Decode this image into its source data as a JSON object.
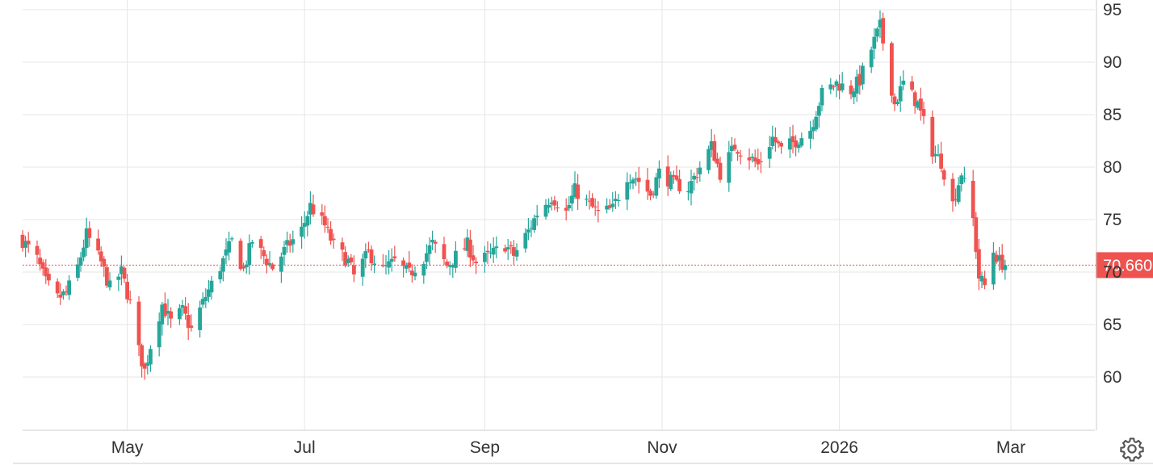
{
  "chart_data": {
    "type": "candlestick",
    "title": "",
    "xlabel": "",
    "ylabel": "",
    "ylim": [
      55,
      95
    ],
    "y_ticks": [
      60,
      65,
      70,
      75,
      80,
      85,
      90,
      95
    ],
    "x_tick_labels": [
      "May",
      "Jul",
      "Sep",
      "Nov",
      "2026",
      "Mar"
    ],
    "x_range": [
      "2025-03-26",
      "2026-03-02"
    ],
    "grid": true,
    "last_price": 70.66,
    "last_price_label": "70.660",
    "colors": {
      "up": "#26a69a",
      "down": "#ef5350",
      "grid": "#e6e6e6",
      "price_line": "#ef5350",
      "axis": "#cccccc"
    },
    "control_icons": [
      "settings-icon"
    ],
    "anchor_closes": [
      [
        "2025-03-26",
        73.0
      ],
      [
        "2025-03-31",
        71.2
      ],
      [
        "2025-04-03",
        69.0
      ],
      [
        "2025-04-07",
        67.5
      ],
      [
        "2025-04-10",
        68.0
      ],
      [
        "2025-04-14",
        70.5
      ],
      [
        "2025-04-17",
        73.6
      ],
      [
        "2025-04-22",
        70.9
      ],
      [
        "2025-04-25",
        68.5
      ],
      [
        "2025-04-29",
        70.0
      ],
      [
        "2025-05-02",
        67.0
      ],
      [
        "2025-05-05",
        62.5
      ],
      [
        "2025-05-07",
        60.6
      ],
      [
        "2025-05-09",
        63.0
      ],
      [
        "2025-05-13",
        66.9
      ],
      [
        "2025-05-16",
        65.2
      ],
      [
        "2025-05-20",
        66.3
      ],
      [
        "2025-05-23",
        64.5
      ],
      [
        "2025-05-28",
        67.7
      ],
      [
        "2025-06-02",
        70.5
      ],
      [
        "2025-06-06",
        72.9
      ],
      [
        "2025-06-10",
        70.2
      ],
      [
        "2025-06-13",
        73.0
      ],
      [
        "2025-06-17",
        71.5
      ],
      [
        "2025-06-20",
        70.4
      ],
      [
        "2025-06-25",
        72.4
      ],
      [
        "2025-06-30",
        74.0
      ],
      [
        "2025-07-03",
        76.3
      ],
      [
        "2025-07-08",
        74.4
      ],
      [
        "2025-07-11",
        72.5
      ],
      [
        "2025-07-16",
        71.0
      ],
      [
        "2025-07-18",
        69.6
      ],
      [
        "2025-07-23",
        71.8
      ],
      [
        "2025-07-28",
        70.2
      ],
      [
        "2025-08-01",
        71.0
      ],
      [
        "2025-08-06",
        69.8
      ],
      [
        "2025-08-11",
        71.4
      ],
      [
        "2025-08-14",
        72.7
      ],
      [
        "2025-08-19",
        70.6
      ],
      [
        "2025-08-22",
        71.5
      ],
      [
        "2025-08-26",
        72.6
      ],
      [
        "2025-08-29",
        70.9
      ],
      [
        "2025-09-03",
        71.6
      ],
      [
        "2025-09-08",
        72.6
      ],
      [
        "2025-09-11",
        71.6
      ],
      [
        "2025-09-16",
        73.9
      ],
      [
        "2025-09-19",
        75.6
      ],
      [
        "2025-09-24",
        77.2
      ],
      [
        "2025-09-29",
        75.7
      ],
      [
        "2025-10-02",
        77.8
      ],
      [
        "2025-10-07",
        76.4
      ],
      [
        "2025-10-10",
        75.6
      ],
      [
        "2025-10-15",
        76.0
      ],
      [
        "2025-10-20",
        79.2
      ],
      [
        "2025-10-23",
        79.0
      ],
      [
        "2025-10-28",
        77.4
      ],
      [
        "2025-10-31",
        79.5
      ],
      [
        "2025-11-05",
        78.4
      ],
      [
        "2025-11-10",
        78.0
      ],
      [
        "2025-11-13",
        79.5
      ],
      [
        "2025-11-18",
        82.0
      ],
      [
        "2025-11-21",
        79.4
      ],
      [
        "2025-11-26",
        82.0
      ],
      [
        "2025-12-01",
        81.0
      ],
      [
        "2025-12-04",
        80.2
      ],
      [
        "2025-12-09",
        82.8
      ],
      [
        "2025-12-12",
        81.6
      ],
      [
        "2025-12-17",
        82.5
      ],
      [
        "2025-12-22",
        83.6
      ],
      [
        "2025-12-26",
        87.0
      ],
      [
        "2025-12-31",
        88.0
      ],
      [
        "2026-01-05",
        87.3
      ],
      [
        "2026-01-08",
        88.3
      ],
      [
        "2026-01-13",
        92.0
      ],
      [
        "2026-01-15",
        93.4
      ],
      [
        "2026-01-20",
        86.0
      ],
      [
        "2026-01-23",
        88.0
      ],
      [
        "2026-01-28",
        86.0
      ],
      [
        "2026-02-02",
        81.6
      ],
      [
        "2026-02-05",
        80.5
      ],
      [
        "2026-02-09",
        76.5
      ],
      [
        "2026-02-12",
        79.5
      ],
      [
        "2026-02-16",
        75.0
      ],
      [
        "2026-02-18",
        69.5
      ],
      [
        "2026-02-20",
        68.7
      ],
      [
        "2026-02-23",
        72.0
      ],
      [
        "2026-02-25",
        71.0
      ],
      [
        "2026-02-27",
        70.66
      ]
    ]
  }
}
